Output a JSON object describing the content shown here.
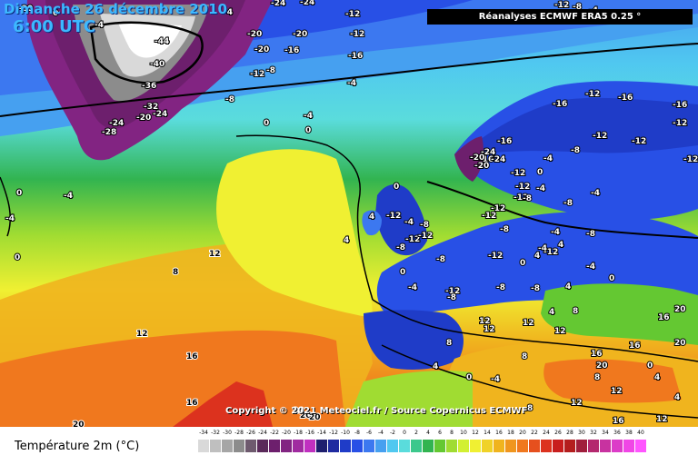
{
  "header": {
    "date": "Dimanche 26 décembre 2010",
    "time": "6:00 UTC",
    "source": "Réanalyses ECMWF ERA5 0.25 °"
  },
  "footer": {
    "copyright": "Copyright © 2021 Meteociel.fr / Source Copernicus ECMWF",
    "variable": "Température 2m (°C)"
  },
  "legend": {
    "ticks": [
      "-34",
      "-32",
      "-30",
      "-28",
      "-26",
      "-24",
      "-22",
      "-20",
      "-18",
      "-16",
      "-14",
      "-12",
      "-10",
      "-8",
      "-6",
      "-4",
      "-2",
      "0",
      "2",
      "4",
      "6",
      "8",
      "10",
      "12",
      "14",
      "16",
      "18",
      "20",
      "22",
      "24",
      "26",
      "28",
      "30",
      "32",
      "34",
      "36",
      "38",
      "40"
    ],
    "colors": [
      "#d9d9d9",
      "#bfbfbf",
      "#a6a6a6",
      "#8c8c8c",
      "#6e5a6e",
      "#5a2a5a",
      "#6d1f6d",
      "#822482",
      "#a02ba0",
      "#c030c0",
      "#1e1e6e",
      "#1f2aa0",
      "#1f3cc8",
      "#2850e6",
      "#3c78f0",
      "#46a0f0",
      "#50c8f0",
      "#5adcdc",
      "#3cc88c",
      "#32b450",
      "#64c832",
      "#a0dc32",
      "#d2f032",
      "#f0f032",
      "#f0d228",
      "#f0b41e",
      "#f0961e",
      "#f0781e",
      "#e6501e",
      "#dc321e",
      "#c81e1e",
      "#b41e1e",
      "#a01e3c",
      "#b4286e",
      "#c832a0",
      "#dc3cc8",
      "#f046e6",
      "#ff55ff"
    ]
  },
  "labels": {
    "greenland": [
      "-44",
      "-40",
      "-36",
      "-32",
      "-28",
      "-24",
      "-20",
      "-24",
      "-20",
      "-16",
      "-20",
      "-12",
      "-12",
      "-16",
      "-12",
      "-8",
      "-8",
      "-4",
      "-4",
      "-4",
      "0",
      "-20",
      "-24",
      "-20",
      "-24"
    ],
    "atlantic": [
      "-4",
      "0",
      "0",
      "-4",
      "-4",
      "0",
      "0",
      "4",
      "8",
      "12",
      "12",
      "16",
      "16",
      "20",
      "20",
      "20",
      "20"
    ],
    "europe": [
      "-12",
      "-16",
      "-12",
      "-16",
      "-12",
      "-16",
      "-16",
      "-12",
      "-8",
      "-4",
      "-12",
      "-12",
      "-8",
      "-4",
      "-8",
      "-12",
      "-12",
      "-16",
      "-20",
      "-24",
      "-20",
      "-24",
      "-12",
      "-8",
      "-4",
      "0",
      "-4",
      "-8",
      "-12",
      "-12",
      "-8",
      "-4",
      "4",
      "0",
      "-4",
      "-8",
      "-12",
      "-12",
      "0",
      "4",
      "-4",
      "-8",
      "-8",
      "-8",
      "-12",
      "-12",
      "-12",
      "-8",
      "-4",
      "0",
      "4",
      "-8",
      "-12",
      "-4",
      "0",
      "4",
      "8",
      "4",
      "12",
      "12",
      "16",
      "20",
      "20",
      "16",
      "12",
      "8",
      "4",
      "0",
      "-4",
      "12",
      "8",
      "4",
      "0",
      "8",
      "12",
      "16",
      "20",
      "4",
      "12",
      "16",
      "12",
      "8",
      "12",
      "20",
      "16"
    ]
  }
}
